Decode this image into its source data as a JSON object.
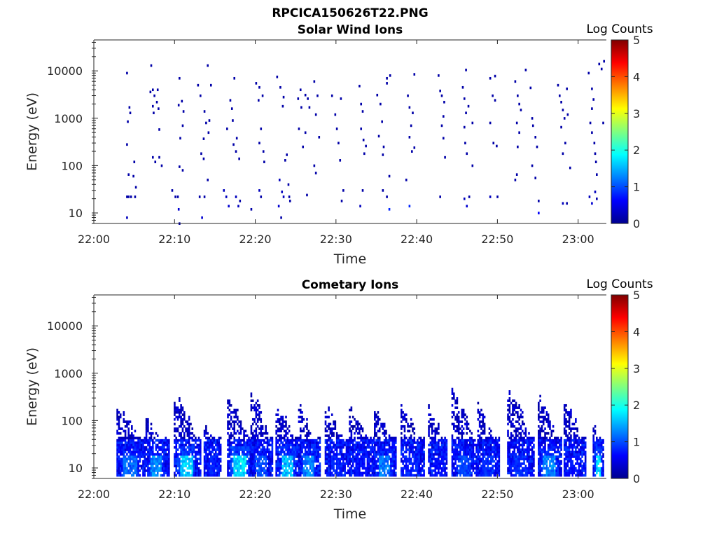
{
  "figure_title": "RPCICA150626T22.PNG",
  "chart_data": [
    {
      "type": "heatmap",
      "title": "Solar Wind Ions",
      "xlabel": "Time",
      "ylabel": "Energy (eV)",
      "colorbar_label": "Log Counts",
      "x_range_minutes": [
        0,
        63.5
      ],
      "xticks": [
        "22:00",
        "22:10",
        "22:20",
        "22:30",
        "22:40",
        "22:50",
        "23:00"
      ],
      "y_scale": "log",
      "ylim": [
        6,
        45000
      ],
      "yticks": [
        "10",
        "100",
        "1000",
        "10000"
      ],
      "colorbar_range": [
        0,
        5
      ],
      "colorbar_ticks": [
        "0",
        "1",
        "2",
        "3",
        "4",
        "5"
      ],
      "colormap": "jet",
      "grid": false,
      "cells": [
        [
          4.0,
          9000,
          0.2
        ],
        [
          4.1,
          850,
          0.2
        ],
        [
          4.3,
          1700,
          0.2
        ],
        [
          4.4,
          1300,
          0.2
        ],
        [
          4.0,
          280,
          0.2
        ],
        [
          4.2,
          65,
          0.2
        ],
        [
          4.0,
          22,
          0.2
        ],
        [
          4.2,
          22,
          0.2
        ],
        [
          4.0,
          8,
          0.3
        ],
        [
          4.5,
          22,
          0.2
        ],
        [
          4.8,
          60,
          0.2
        ],
        [
          4.9,
          120,
          0.2
        ],
        [
          5.0,
          22,
          0.2
        ],
        [
          5.1,
          35,
          0.2
        ],
        [
          7.0,
          13000,
          0.2
        ],
        [
          6.9,
          3600,
          0.2
        ],
        [
          7.2,
          4000,
          0.2
        ],
        [
          7.4,
          3000,
          0.2
        ],
        [
          7.2,
          1800,
          0.2
        ],
        [
          7.3,
          1300,
          0.2
        ],
        [
          7.2,
          150,
          0.2
        ],
        [
          7.5,
          120,
          0.2
        ],
        [
          7.8,
          4000,
          0.2
        ],
        [
          7.7,
          2200,
          0.2
        ],
        [
          7.9,
          1600,
          0.2
        ],
        [
          8.0,
          150,
          0.2
        ],
        [
          8.3,
          100,
          0.2
        ],
        [
          8.0,
          580,
          0.2
        ],
        [
          10.5,
          7000,
          0.2
        ],
        [
          10.8,
          2300,
          0.2
        ],
        [
          10.4,
          1900,
          0.2
        ],
        [
          11.0,
          1400,
          0.2
        ],
        [
          10.9,
          700,
          0.2
        ],
        [
          10.6,
          380,
          0.2
        ],
        [
          10.5,
          95,
          0.2
        ],
        [
          10.9,
          80,
          0.2
        ],
        [
          9.6,
          30,
          0.2
        ],
        [
          10.0,
          22,
          0.2
        ],
        [
          10.3,
          22,
          0.2
        ],
        [
          10.4,
          12,
          0.4
        ],
        [
          10.5,
          6,
          0.2
        ],
        [
          12.8,
          5000,
          0.2
        ],
        [
          13.1,
          3000,
          0.2
        ],
        [
          13.6,
          1400,
          0.2
        ],
        [
          13.8,
          800,
          0.2
        ],
        [
          13.5,
          370,
          0.2
        ],
        [
          13.2,
          180,
          0.2
        ],
        [
          13.5,
          140,
          0.2
        ],
        [
          13.0,
          22,
          0.2
        ],
        [
          13.6,
          22,
          0.2
        ],
        [
          13.3,
          8,
          0.4
        ],
        [
          14.0,
          50,
          0.2
        ],
        [
          14.0,
          13000,
          0.2
        ],
        [
          14.4,
          5000,
          0.2
        ],
        [
          14.2,
          900,
          0.2
        ],
        [
          14.1,
          500,
          0.2
        ],
        [
          16.0,
          30,
          0.3
        ],
        [
          16.3,
          22,
          0.3
        ],
        [
          16.6,
          14,
          0.4
        ],
        [
          16.4,
          600,
          0.2
        ],
        [
          16.8,
          2400,
          0.2
        ],
        [
          17.0,
          1600,
          0.2
        ],
        [
          17.1,
          900,
          0.2
        ],
        [
          17.3,
          7000,
          0.2
        ],
        [
          17.6,
          380,
          0.2
        ],
        [
          17.2,
          280,
          0.2
        ],
        [
          17.5,
          200,
          0.2
        ],
        [
          17.9,
          140,
          0.2
        ],
        [
          17.5,
          22,
          0.3
        ],
        [
          17.8,
          14,
          0.3
        ],
        [
          18.0,
          18,
          0.2
        ],
        [
          20.0,
          5500,
          0.2
        ],
        [
          20.4,
          4500,
          0.2
        ],
        [
          20.8,
          3000,
          0.2
        ],
        [
          20.3,
          2400,
          0.2
        ],
        [
          20.6,
          600,
          0.2
        ],
        [
          20.4,
          300,
          0.2
        ],
        [
          20.9,
          200,
          0.2
        ],
        [
          21.0,
          120,
          0.2
        ],
        [
          20.4,
          30,
          0.3
        ],
        [
          20.6,
          22,
          0.2
        ],
        [
          19.4,
          12,
          0.2
        ],
        [
          22.6,
          7500,
          0.2
        ],
        [
          23.0,
          4500,
          0.2
        ],
        [
          23.4,
          2800,
          0.2
        ],
        [
          23.3,
          1800,
          0.2
        ],
        [
          23.6,
          130,
          0.2
        ],
        [
          23.8,
          170,
          0.2
        ],
        [
          22.9,
          50,
          0.3
        ],
        [
          23.2,
          28,
          0.3
        ],
        [
          23.4,
          22,
          0.3
        ],
        [
          22.8,
          14,
          0.4
        ],
        [
          23.1,
          8,
          0.2
        ],
        [
          24.0,
          40,
          0.2
        ],
        [
          24.1,
          22,
          0.2
        ],
        [
          24.2,
          18,
          0.2
        ],
        [
          25.5,
          4000,
          0.2
        ],
        [
          25.2,
          2600,
          0.2
        ],
        [
          25.6,
          1700,
          0.2
        ],
        [
          25.3,
          600,
          0.2
        ],
        [
          25.8,
          250,
          0.2
        ],
        [
          26.1,
          3100,
          0.2
        ],
        [
          26.4,
          2600,
          0.2
        ],
        [
          26.1,
          500,
          0.2
        ],
        [
          26.6,
          1700,
          0.2
        ],
        [
          26.3,
          24,
          0.2
        ],
        [
          27.2,
          6000,
          0.2
        ],
        [
          27.6,
          3000,
          0.2
        ],
        [
          27.4,
          1200,
          0.2
        ],
        [
          27.8,
          400,
          0.2
        ],
        [
          27.2,
          100,
          0.2
        ],
        [
          27.4,
          70,
          0.2
        ],
        [
          29.4,
          3000,
          0.2
        ],
        [
          29.8,
          1200,
          0.2
        ],
        [
          30.0,
          600,
          0.2
        ],
        [
          30.2,
          300,
          0.2
        ],
        [
          30.4,
          130,
          0.2
        ],
        [
          30.5,
          2600,
          0.2
        ],
        [
          30.8,
          30,
          0.2
        ],
        [
          30.6,
          18,
          0.2
        ],
        [
          32.8,
          4800,
          0.2
        ],
        [
          33.0,
          2000,
          0.2
        ],
        [
          33.2,
          1400,
          0.2
        ],
        [
          33.0,
          600,
          0.2
        ],
        [
          33.3,
          350,
          0.2
        ],
        [
          33.6,
          260,
          0.2
        ],
        [
          33.4,
          180,
          0.2
        ],
        [
          33.2,
          30,
          0.2
        ],
        [
          32.9,
          14,
          0.3
        ],
        [
          35.0,
          3100,
          0.2
        ],
        [
          35.4,
          2000,
          0.2
        ],
        [
          35.6,
          850,
          0.2
        ],
        [
          35.2,
          420,
          0.2
        ],
        [
          35.8,
          250,
          0.2
        ],
        [
          35.7,
          170,
          0.2
        ],
        [
          36.2,
          7000,
          0.2
        ],
        [
          36.6,
          8000,
          0.2
        ],
        [
          36.2,
          5500,
          0.2
        ],
        [
          35.7,
          30,
          0.2
        ],
        [
          36.2,
          22,
          0.2
        ],
        [
          36.5,
          60,
          0.2
        ],
        [
          36.5,
          12,
          0.8
        ],
        [
          38.8,
          3000,
          0.2
        ],
        [
          39.0,
          1700,
          0.2
        ],
        [
          39.4,
          1300,
          0.2
        ],
        [
          39.2,
          700,
          0.2
        ],
        [
          39.0,
          400,
          0.2
        ],
        [
          39.3,
          200,
          0.2
        ],
        [
          39.6,
          8500,
          0.2
        ],
        [
          39.6,
          240,
          0.2
        ],
        [
          38.6,
          50,
          0.2
        ],
        [
          39.0,
          14,
          0.8
        ],
        [
          42.6,
          8000,
          0.2
        ],
        [
          42.8,
          3800,
          0.2
        ],
        [
          43.0,
          3000,
          0.2
        ],
        [
          43.3,
          2200,
          0.2
        ],
        [
          43.2,
          1100,
          0.2
        ],
        [
          43.0,
          700,
          0.2
        ],
        [
          43.4,
          150,
          0.2
        ],
        [
          43.2,
          380,
          0.2
        ],
        [
          42.8,
          22,
          0.2
        ],
        [
          45.6,
          4500,
          0.2
        ],
        [
          45.8,
          2600,
          0.2
        ],
        [
          46.0,
          1300,
          0.2
        ],
        [
          45.8,
          650,
          0.2
        ],
        [
          45.9,
          300,
          0.2
        ],
        [
          46.1,
          180,
          0.2
        ],
        [
          46.0,
          10500,
          0.2
        ],
        [
          46.3,
          1800,
          0.2
        ],
        [
          46.8,
          800,
          0.2
        ],
        [
          45.8,
          20,
          0.3
        ],
        [
          46.1,
          14,
          0.4
        ],
        [
          46.4,
          22,
          0.2
        ],
        [
          46.8,
          100,
          0.2
        ],
        [
          49.0,
          7000,
          0.2
        ],
        [
          49.6,
          7800,
          0.2
        ],
        [
          49.3,
          3000,
          0.2
        ],
        [
          49.6,
          2400,
          0.2
        ],
        [
          49.0,
          800,
          0.2
        ],
        [
          49.4,
          300,
          0.2
        ],
        [
          49.8,
          260,
          0.2
        ],
        [
          49.0,
          22,
          0.3
        ],
        [
          49.9,
          22,
          0.2
        ],
        [
          52.1,
          6000,
          0.2
        ],
        [
          52.4,
          3000,
          0.2
        ],
        [
          52.6,
          2000,
          0.2
        ],
        [
          52.8,
          1500,
          0.2
        ],
        [
          52.3,
          800,
          0.2
        ],
        [
          52.6,
          500,
          0.2
        ],
        [
          52.4,
          250,
          0.2
        ],
        [
          52.1,
          50,
          0.2
        ],
        [
          52.3,
          65,
          0.2
        ],
        [
          53.4,
          10500,
          0.2
        ],
        [
          54.0,
          4400,
          0.2
        ],
        [
          54.2,
          1000,
          0.2
        ],
        [
          54.3,
          700,
          0.2
        ],
        [
          54.6,
          400,
          0.2
        ],
        [
          54.8,
          250,
          0.2
        ],
        [
          54.2,
          100,
          0.2
        ],
        [
          54.6,
          55,
          0.2
        ],
        [
          55.0,
          18,
          0.2
        ],
        [
          55.0,
          10,
          0.6
        ],
        [
          57.4,
          5000,
          0.2
        ],
        [
          57.6,
          3000,
          0.2
        ],
        [
          57.8,
          2200,
          0.2
        ],
        [
          58.0,
          1500,
          0.2
        ],
        [
          58.2,
          1000,
          0.2
        ],
        [
          57.8,
          650,
          0.2
        ],
        [
          58.3,
          300,
          0.2
        ],
        [
          58.0,
          180,
          0.2
        ],
        [
          58.5,
          4200,
          0.2
        ],
        [
          58.6,
          1200,
          0.2
        ],
        [
          58.9,
          90,
          0.2
        ],
        [
          58.0,
          16,
          0.3
        ],
        [
          58.5,
          16,
          0.2
        ],
        [
          61.2,
          9000,
          0.2
        ],
        [
          61.6,
          4200,
          0.2
        ],
        [
          61.8,
          2500,
          0.2
        ],
        [
          61.6,
          1600,
          0.2
        ],
        [
          61.4,
          800,
          0.2
        ],
        [
          61.6,
          500,
          0.2
        ],
        [
          61.9,
          300,
          0.2
        ],
        [
          62.0,
          180,
          0.2
        ],
        [
          62.1,
          120,
          0.2
        ],
        [
          62.2,
          65,
          0.2
        ],
        [
          61.3,
          22,
          0.3
        ],
        [
          61.6,
          16,
          0.4
        ],
        [
          62.0,
          28,
          0.3
        ],
        [
          62.2,
          20,
          0.2
        ],
        [
          62.5,
          14000,
          0.2
        ],
        [
          62.8,
          11000,
          0.2
        ],
        [
          63.1,
          16000,
          0.2
        ],
        [
          63.0,
          800,
          0.2
        ]
      ]
    },
    {
      "type": "heatmap",
      "title": "Cometary Ions",
      "xlabel": "Time",
      "ylabel": "Energy (eV)",
      "colorbar_label": "Log Counts",
      "x_range_minutes": [
        0,
        63.5
      ],
      "xticks": [
        "22:00",
        "22:10",
        "22:20",
        "22:30",
        "22:40",
        "22:50",
        "23:00"
      ],
      "y_scale": "log",
      "ylim": [
        6,
        45000
      ],
      "yticks": [
        "10",
        "100",
        "1000",
        "10000"
      ],
      "colorbar_range": [
        0,
        5
      ],
      "colorbar_ticks": [
        "0",
        "1",
        "2",
        "3",
        "4",
        "5"
      ],
      "colormap": "jet",
      "grid": false,
      "bursts": [
        [
          2.8,
          3.6,
          12,
          240,
          1.3
        ],
        [
          6.4,
          2.8,
          10,
          150,
          1.5
        ],
        [
          9.9,
          3.2,
          14,
          420,
          1.9
        ],
        [
          13.6,
          2.0,
          16,
          100,
          0.9
        ],
        [
          16.5,
          3.4,
          12,
          350,
          2.0
        ],
        [
          19.4,
          2.6,
          15,
          600,
          1.2
        ],
        [
          22.5,
          3.0,
          14,
          260,
          1.8
        ],
        [
          25.3,
          2.6,
          13,
          260,
          1.5
        ],
        [
          28.6,
          3.0,
          12,
          260,
          0.9
        ],
        [
          31.6,
          3.2,
          11,
          250,
          0.8
        ],
        [
          34.7,
          2.8,
          11,
          260,
          1.4
        ],
        [
          38.0,
          3.0,
          12,
          240,
          0.9
        ],
        [
          41.4,
          2.4,
          12,
          250,
          0.8
        ],
        [
          44.3,
          3.4,
          11,
          540,
          1.1
        ],
        [
          47.5,
          2.8,
          13,
          250,
          1.0
        ],
        [
          51.2,
          3.4,
          10,
          600,
          1.0
        ],
        [
          55.0,
          3.0,
          11,
          380,
          1.5
        ],
        [
          58.2,
          2.8,
          11,
          320,
          0.8
        ],
        [
          61.8,
          1.4,
          12,
          120,
          1.9
        ]
      ]
    }
  ]
}
